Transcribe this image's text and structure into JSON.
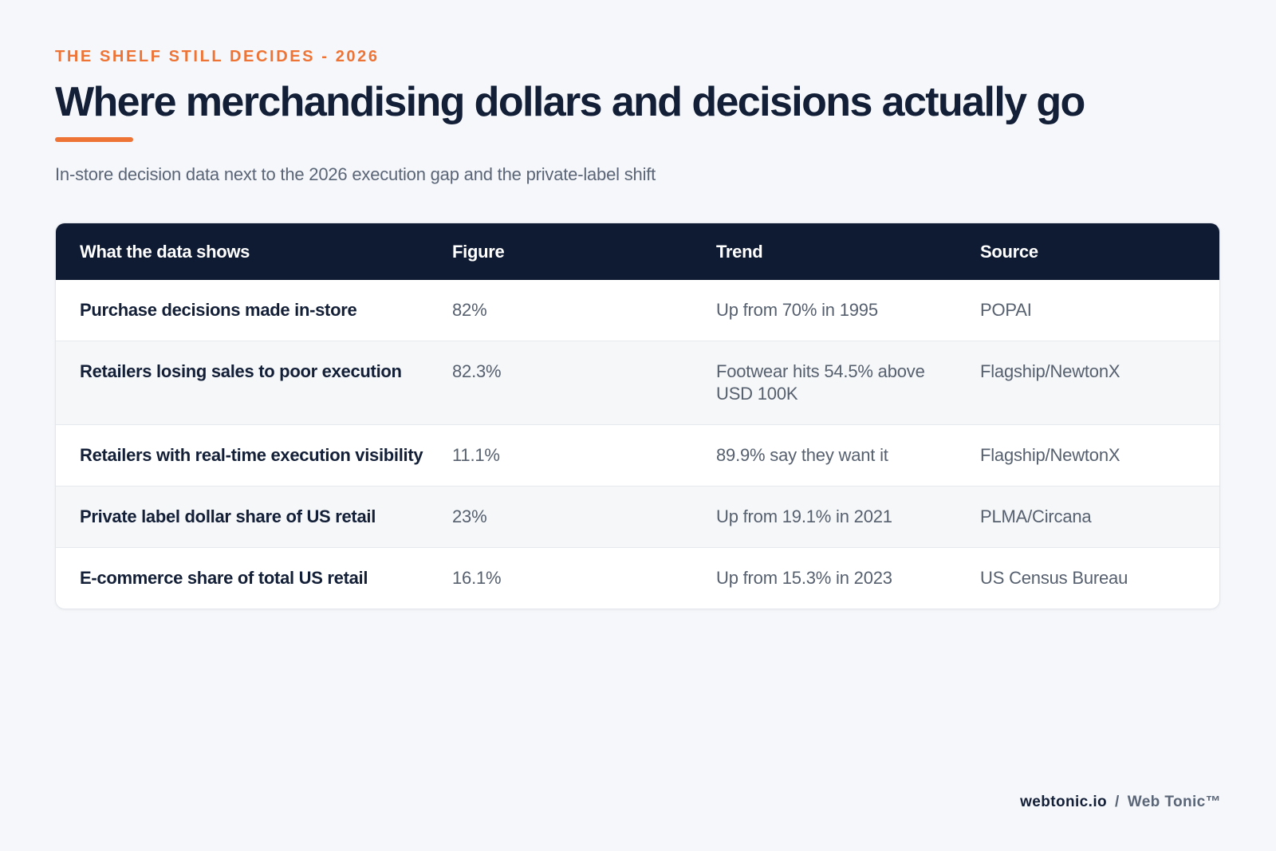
{
  "header": {
    "eyebrow": "THE SHELF STILL DECIDES - 2026",
    "title": "Where merchandising dollars and decisions actually go",
    "subtitle": "In-store decision data next to the 2026 execution gap and the private-label shift"
  },
  "table": {
    "columns": [
      "What the data shows",
      "Figure",
      "Trend",
      "Source"
    ],
    "rows": [
      {
        "metric": "Purchase decisions made in-store",
        "figure": "82%",
        "trend": "Up from 70% in 1995",
        "source": "POPAI"
      },
      {
        "metric": "Retailers losing sales to poor execution",
        "figure": "82.3%",
        "trend": "Footwear hits 54.5% above USD 100K",
        "source": "Flagship/NewtonX"
      },
      {
        "metric": "Retailers with real-time execution visibility",
        "figure": "11.1%",
        "trend": "89.9% say they want it",
        "source": "Flagship/NewtonX"
      },
      {
        "metric": "Private label dollar share of US retail",
        "figure": "23%",
        "trend": "Up from 19.1% in 2021",
        "source": "PLMA/Circana"
      },
      {
        "metric": "E-commerce share of total US retail",
        "figure": "16.1%",
        "trend": "Up from 15.3% in 2023",
        "source": "US Census Bureau"
      }
    ]
  },
  "footer": {
    "site": "webtonic.io",
    "separator": "/",
    "brand": "Web Tonic™"
  },
  "colors": {
    "accent": "#ee7436",
    "navy": "#0f1b33",
    "background": "#f5f7fa"
  }
}
